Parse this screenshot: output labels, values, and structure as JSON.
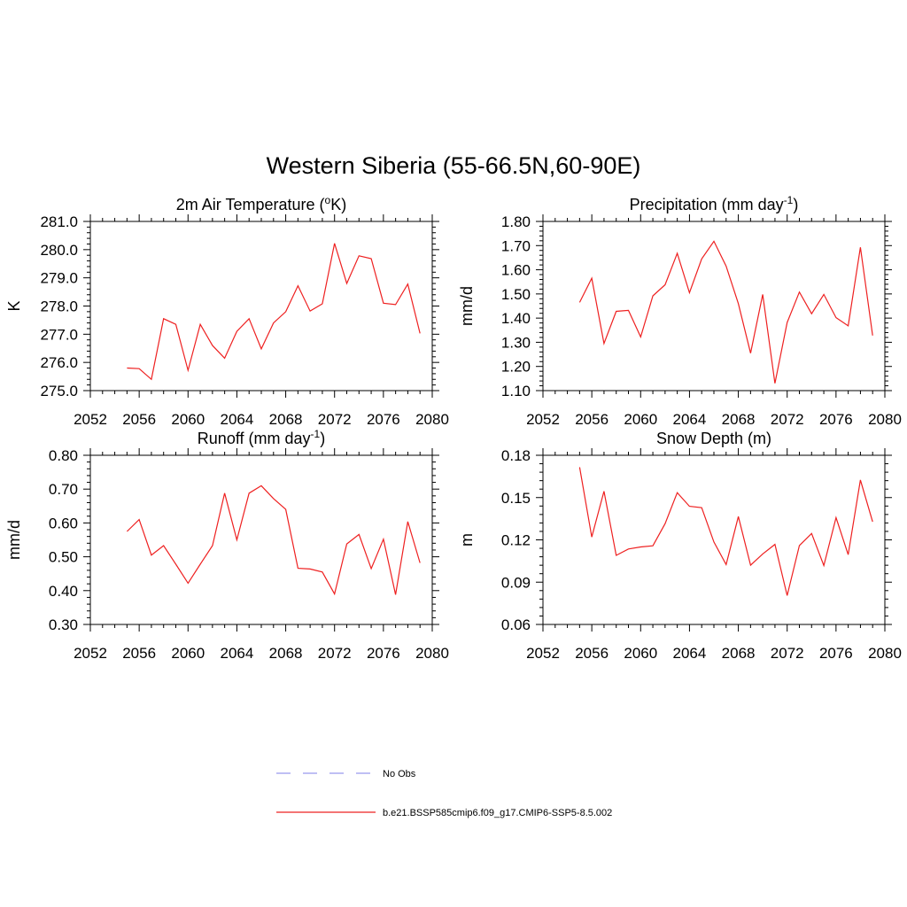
{
  "figure": {
    "title": "Western Siberia (55-66.5N,60-90E)"
  },
  "legend": {
    "items": [
      {
        "label": "No Obs",
        "color": "#9999ee",
        "dashed": true
      },
      {
        "label": "b.e21.BSSP585cmip6.f09_g17.CMIP6-SSP5-8.5.002",
        "color": "#ee2020",
        "dashed": false
      }
    ]
  },
  "chart_data": [
    {
      "type": "line",
      "title": "2m Air Temperature (",
      "title_sup": "o",
      "title_suffix": "K)",
      "ylabel": "K",
      "xlim": [
        2052,
        2080
      ],
      "ylim": [
        275.0,
        281.0
      ],
      "xticks": [
        2052,
        2056,
        2060,
        2064,
        2068,
        2072,
        2076,
        2080
      ],
      "yticks": [
        "275.0",
        "276.0",
        "277.0",
        "278.0",
        "279.0",
        "280.0",
        "281.0"
      ],
      "grid": false,
      "series": [
        {
          "color": "#ee2020",
          "x": [
            2055,
            2056,
            2057,
            2058,
            2059,
            2060,
            2061,
            2062,
            2063,
            2064,
            2065,
            2066,
            2067,
            2068,
            2069,
            2070,
            2071,
            2072,
            2073,
            2074,
            2075,
            2076,
            2077,
            2078,
            2079
          ],
          "values": [
            275.8,
            275.78,
            275.4,
            277.55,
            277.35,
            275.72,
            277.35,
            276.6,
            276.15,
            277.1,
            277.55,
            276.48,
            277.4,
            277.8,
            278.72,
            277.82,
            278.08,
            280.22,
            278.8,
            279.78,
            279.68,
            278.1,
            278.05,
            278.78,
            277.03
          ]
        }
      ]
    },
    {
      "type": "line",
      "title": "Precipitation (mm day",
      "title_sup": "-1",
      "title_suffix": ")",
      "ylabel": "mm/d",
      "xlim": [
        2052,
        2080
      ],
      "ylim": [
        1.1,
        1.8
      ],
      "xticks": [
        2052,
        2056,
        2060,
        2064,
        2068,
        2072,
        2076,
        2080
      ],
      "yticks": [
        "1.10",
        "1.20",
        "1.30",
        "1.40",
        "1.50",
        "1.60",
        "1.70",
        "1.80"
      ],
      "grid": false,
      "series": [
        {
          "color": "#ee2020",
          "x": [
            2055,
            2056,
            2057,
            2058,
            2059,
            2060,
            2061,
            2062,
            2063,
            2064,
            2065,
            2066,
            2067,
            2068,
            2069,
            2070,
            2071,
            2072,
            2073,
            2074,
            2075,
            2076,
            2077,
            2078,
            2079
          ],
          "values": [
            1.465,
            1.565,
            1.295,
            1.428,
            1.432,
            1.322,
            1.492,
            1.538,
            1.668,
            1.505,
            1.645,
            1.718,
            1.615,
            1.46,
            1.255,
            1.498,
            1.13,
            1.382,
            1.508,
            1.418,
            1.498,
            1.402,
            1.368,
            1.693,
            1.328
          ]
        }
      ]
    },
    {
      "type": "line",
      "title": "Runoff (mm day",
      "title_sup": "-1",
      "title_suffix": ")",
      "ylabel": "mm/d",
      "xlim": [
        2052,
        2080
      ],
      "ylim": [
        0.3,
        0.8
      ],
      "xticks": [
        2052,
        2056,
        2060,
        2064,
        2068,
        2072,
        2076,
        2080
      ],
      "yticks": [
        "0.30",
        "0.40",
        "0.50",
        "0.60",
        "0.70",
        "0.80"
      ],
      "grid": false,
      "series": [
        {
          "color": "#ee2020",
          "x": [
            2055,
            2056,
            2057,
            2058,
            2059,
            2060,
            2061,
            2062,
            2063,
            2064,
            2065,
            2066,
            2067,
            2068,
            2069,
            2070,
            2071,
            2072,
            2073,
            2074,
            2075,
            2076,
            2077,
            2078,
            2079
          ],
          "values": [
            0.575,
            0.61,
            0.505,
            0.533,
            0.478,
            0.422,
            0.478,
            0.533,
            0.688,
            0.55,
            0.688,
            0.71,
            0.672,
            0.64,
            0.466,
            0.464,
            0.455,
            0.39,
            0.538,
            0.566,
            0.465,
            0.552,
            0.388,
            0.604,
            0.482
          ]
        }
      ]
    },
    {
      "type": "line",
      "title": "Snow Depth (m)",
      "title_sup": "",
      "title_suffix": "",
      "ylabel": "m",
      "xlim": [
        2052,
        2080
      ],
      "ylim": [
        0.06,
        0.18
      ],
      "xticks": [
        2052,
        2056,
        2060,
        2064,
        2068,
        2072,
        2076,
        2080
      ],
      "yticks": [
        "0.06",
        "0.09",
        "0.12",
        "0.15",
        "0.18"
      ],
      "grid": false,
      "series": [
        {
          "color": "#ee2020",
          "x": [
            2055,
            2056,
            2057,
            2058,
            2059,
            2060,
            2061,
            2062,
            2063,
            2064,
            2065,
            2066,
            2067,
            2068,
            2069,
            2070,
            2071,
            2072,
            2073,
            2074,
            2075,
            2076,
            2077,
            2078,
            2079
          ],
          "values": [
            0.1715,
            0.122,
            0.1545,
            0.109,
            0.1135,
            0.115,
            0.1158,
            0.1315,
            0.1535,
            0.1438,
            0.1428,
            0.1185,
            0.1025,
            0.1365,
            0.102,
            0.11,
            0.1168,
            0.0805,
            0.116,
            0.1245,
            0.1018,
            0.1358,
            0.1095,
            0.1625,
            0.1328
          ]
        }
      ]
    }
  ]
}
